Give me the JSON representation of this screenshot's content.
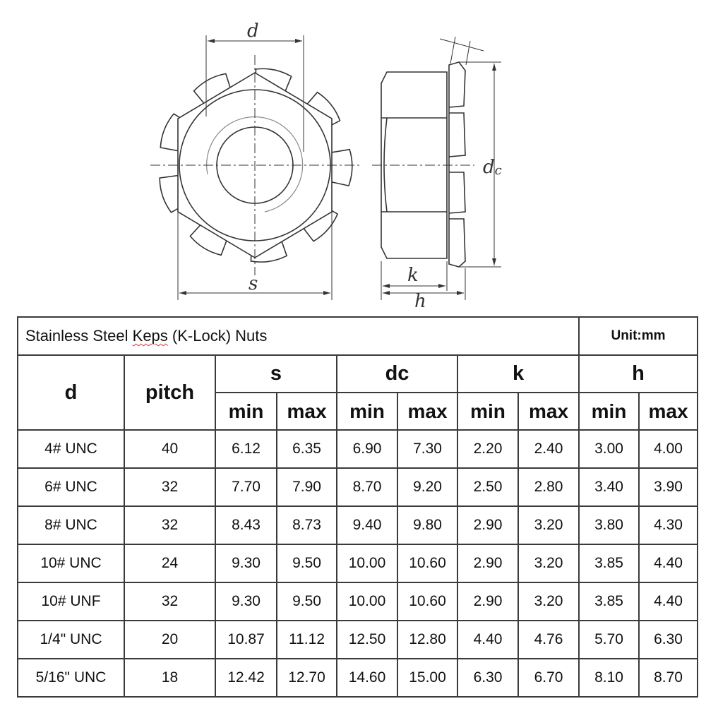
{
  "drawing": {
    "labels": {
      "d": "d",
      "s": "s",
      "dc": "dc",
      "k": "k",
      "h": "h"
    }
  },
  "table": {
    "title_parts": [
      "Stainless Steel ",
      "Keps",
      " (K-Lock) Nuts"
    ],
    "unit": "Unit:mm",
    "headers": {
      "d": "d",
      "pitch": "pitch",
      "groups": [
        "s",
        "dc",
        "k",
        "h"
      ],
      "min": "min",
      "max": "max"
    },
    "rows": [
      [
        "4# UNC",
        "40",
        "6.12",
        "6.35",
        "6.90",
        "7.30",
        "2.20",
        "2.40",
        "3.00",
        "4.00"
      ],
      [
        "6# UNC",
        "32",
        "7.70",
        "7.90",
        "8.70",
        "9.20",
        "2.50",
        "2.80",
        "3.40",
        "3.90"
      ],
      [
        "8# UNC",
        "32",
        "8.43",
        "8.73",
        "9.40",
        "9.80",
        "2.90",
        "3.20",
        "3.80",
        "4.30"
      ],
      [
        "10# UNC",
        "24",
        "9.30",
        "9.50",
        "10.00",
        "10.60",
        "2.90",
        "3.20",
        "3.85",
        "4.40"
      ],
      [
        "10# UNF",
        "32",
        "9.30",
        "9.50",
        "10.00",
        "10.60",
        "2.90",
        "3.20",
        "3.85",
        "4.40"
      ],
      [
        "1/4\" UNC",
        "20",
        "10.87",
        "11.12",
        "12.50",
        "12.80",
        "4.40",
        "4.76",
        "5.70",
        "6.30"
      ],
      [
        "5/16\" UNC",
        "18",
        "12.42",
        "12.70",
        "14.60",
        "15.00",
        "6.30",
        "6.70",
        "8.10",
        "8.70"
      ]
    ]
  }
}
